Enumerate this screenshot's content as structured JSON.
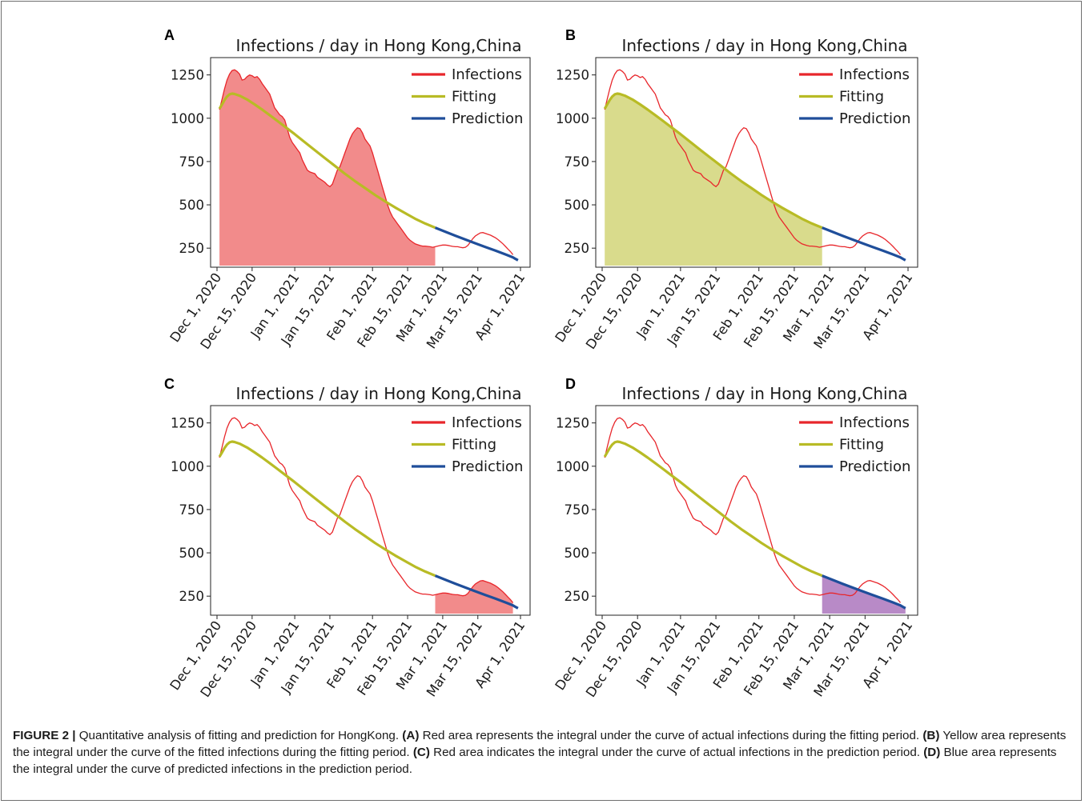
{
  "figure": {
    "caption": {
      "label": "FIGURE 2 |",
      "intro": " Quantitative analysis of fitting and prediction for HongKong. ",
      "parts": [
        {
          "tag": "(A)",
          "text": " Red area represents the integral under the curve of actual infections during the fitting period. "
        },
        {
          "tag": "(B)",
          "text": " Yellow area represents the integral under the curve of the fitted infections during the fitting period. "
        },
        {
          "tag": "(C)",
          "text": " Red area indicates the integral under the curve of actual infections in the prediction period. "
        },
        {
          "tag": "(D)",
          "text": " Blue area represents the integral under the curve of predicted infections in the prediction period."
        }
      ]
    }
  },
  "colors": {
    "infections": "#e8262b",
    "fitting": "#b8bb25",
    "prediction": "#1f4e9a",
    "fill_actual": "#f28b8b",
    "fill_fitted": "#d9db8c",
    "fill_predicted": "#b88ac7"
  },
  "chart_data": [
    {
      "panel": "A",
      "type": "line",
      "title": "Infections / day in Hong Kong,China",
      "xlabel": "",
      "ylabel": "",
      "x_ticks": [
        "Dec 1, 2020",
        "Dec 15, 2020",
        "Jan 1, 2021",
        "Jan 15, 2021",
        "Feb 1, 2021",
        "Feb 15, 2021",
        "Mar 1, 2021",
        "Mar 15, 2021",
        "Apr 1, 2021"
      ],
      "y_ticks": [
        250,
        500,
        750,
        1000,
        1250
      ],
      "legend": [
        "Infections",
        "Fitting",
        "Prediction"
      ],
      "legend_position": "top-right",
      "shaded": "actual-fitting-period"
    },
    {
      "panel": "B",
      "type": "line",
      "title": "Infections / day in Hong Kong,China",
      "xlabel": "",
      "ylabel": "",
      "x_ticks": [
        "Dec 1, 2020",
        "Dec 15, 2020",
        "Jan 1, 2021",
        "Jan 15, 2021",
        "Feb 1, 2021",
        "Feb 15, 2021",
        "Mar 1, 2021",
        "Mar 15, 2021",
        "Apr 1, 2021"
      ],
      "y_ticks": [
        250,
        500,
        750,
        1000,
        1250
      ],
      "legend": [
        "Infections",
        "Fitting",
        "Prediction"
      ],
      "legend_position": "top-right",
      "shaded": "fitted-fitting-period"
    },
    {
      "panel": "C",
      "type": "line",
      "title": "Infections / day in Hong Kong,China",
      "xlabel": "",
      "ylabel": "",
      "x_ticks": [
        "Dec 1, 2020",
        "Dec 15, 2020",
        "Jan 1, 2021",
        "Jan 15, 2021",
        "Feb 1, 2021",
        "Feb 15, 2021",
        "Mar 1, 2021",
        "Mar 15, 2021",
        "Apr 1, 2021"
      ],
      "y_ticks": [
        250,
        500,
        750,
        1000,
        1250
      ],
      "legend": [
        "Infections",
        "Fitting",
        "Prediction"
      ],
      "legend_position": "top-right",
      "shaded": "actual-prediction-period"
    },
    {
      "panel": "D",
      "type": "line",
      "title": "Infections / day in Hong Kong,China",
      "xlabel": "",
      "ylabel": "",
      "x_ticks": [
        "Dec 1, 2020",
        "Dec 15, 2020",
        "Jan 1, 2021",
        "Jan 15, 2021",
        "Feb 1, 2021",
        "Feb 15, 2021",
        "Mar 1, 2021",
        "Mar 15, 2021",
        "Apr 1, 2021"
      ],
      "y_ticks": [
        250,
        500,
        750,
        1000,
        1250
      ],
      "legend": [
        "Infections",
        "Fitting",
        "Prediction"
      ],
      "legend_position": "top-right",
      "shaded": "predicted-prediction-period"
    }
  ],
  "series": {
    "ylim": [
      140,
      1350
    ],
    "prediction_start": "2021-02-26",
    "infections": [
      [
        "2020-12-02",
        1050
      ],
      [
        "2020-12-03",
        1110
      ],
      [
        "2020-12-04",
        1170
      ],
      [
        "2020-12-05",
        1220
      ],
      [
        "2020-12-06",
        1255
      ],
      [
        "2020-12-07",
        1275
      ],
      [
        "2020-12-08",
        1280
      ],
      [
        "2020-12-09",
        1270
      ],
      [
        "2020-12-10",
        1255
      ],
      [
        "2020-12-11",
        1220
      ],
      [
        "2020-12-12",
        1225
      ],
      [
        "2020-12-13",
        1240
      ],
      [
        "2020-12-14",
        1250
      ],
      [
        "2020-12-15",
        1245
      ],
      [
        "2020-12-16",
        1235
      ],
      [
        "2020-12-17",
        1240
      ],
      [
        "2020-12-18",
        1225
      ],
      [
        "2020-12-19",
        1200
      ],
      [
        "2020-12-20",
        1180
      ],
      [
        "2020-12-21",
        1160
      ],
      [
        "2020-12-22",
        1140
      ],
      [
        "2020-12-23",
        1100
      ],
      [
        "2020-12-24",
        1060
      ],
      [
        "2020-12-25",
        1040
      ],
      [
        "2020-12-26",
        1020
      ],
      [
        "2020-12-27",
        1010
      ],
      [
        "2020-12-28",
        990
      ],
      [
        "2020-12-29",
        940
      ],
      [
        "2020-12-30",
        890
      ],
      [
        "2020-12-31",
        860
      ],
      [
        "2021-01-01",
        840
      ],
      [
        "2021-01-02",
        820
      ],
      [
        "2021-01-03",
        800
      ],
      [
        "2021-01-04",
        760
      ],
      [
        "2021-01-05",
        730
      ],
      [
        "2021-01-06",
        700
      ],
      [
        "2021-01-07",
        690
      ],
      [
        "2021-01-08",
        685
      ],
      [
        "2021-01-09",
        680
      ],
      [
        "2021-01-10",
        660
      ],
      [
        "2021-01-11",
        650
      ],
      [
        "2021-01-12",
        640
      ],
      [
        "2021-01-13",
        630
      ],
      [
        "2021-01-14",
        615
      ],
      [
        "2021-01-15",
        605
      ],
      [
        "2021-01-16",
        620
      ],
      [
        "2021-01-17",
        660
      ],
      [
        "2021-01-18",
        700
      ],
      [
        "2021-01-19",
        720
      ],
      [
        "2021-01-20",
        760
      ],
      [
        "2021-01-21",
        800
      ],
      [
        "2021-01-22",
        840
      ],
      [
        "2021-01-23",
        880
      ],
      [
        "2021-01-24",
        910
      ],
      [
        "2021-01-25",
        930
      ],
      [
        "2021-01-26",
        945
      ],
      [
        "2021-01-27",
        940
      ],
      [
        "2021-01-28",
        915
      ],
      [
        "2021-01-29",
        880
      ],
      [
        "2021-01-30",
        860
      ],
      [
        "2021-01-31",
        840
      ],
      [
        "2021-02-01",
        800
      ],
      [
        "2021-02-02",
        750
      ],
      [
        "2021-02-03",
        700
      ],
      [
        "2021-02-04",
        650
      ],
      [
        "2021-02-05",
        600
      ],
      [
        "2021-02-06",
        550
      ],
      [
        "2021-02-07",
        500
      ],
      [
        "2021-02-08",
        460
      ],
      [
        "2021-02-09",
        430
      ],
      [
        "2021-02-10",
        410
      ],
      [
        "2021-02-11",
        390
      ],
      [
        "2021-02-12",
        370
      ],
      [
        "2021-02-13",
        350
      ],
      [
        "2021-02-14",
        330
      ],
      [
        "2021-02-15",
        310
      ],
      [
        "2021-02-16",
        295
      ],
      [
        "2021-02-17",
        285
      ],
      [
        "2021-02-18",
        275
      ],
      [
        "2021-02-19",
        270
      ],
      [
        "2021-02-20",
        265
      ],
      [
        "2021-02-21",
        262
      ],
      [
        "2021-02-22",
        262
      ],
      [
        "2021-02-23",
        260
      ],
      [
        "2021-02-24",
        258
      ],
      [
        "2021-02-25",
        255
      ],
      [
        "2021-02-26",
        258
      ],
      [
        "2021-02-27",
        262
      ],
      [
        "2021-02-28",
        265
      ],
      [
        "2021-03-01",
        268
      ],
      [
        "2021-03-02",
        268
      ],
      [
        "2021-03-03",
        266
      ],
      [
        "2021-03-04",
        263
      ],
      [
        "2021-03-05",
        260
      ],
      [
        "2021-03-06",
        258
      ],
      [
        "2021-03-07",
        258
      ],
      [
        "2021-03-08",
        255
      ],
      [
        "2021-03-09",
        252
      ],
      [
        "2021-03-10",
        255
      ],
      [
        "2021-03-11",
        265
      ],
      [
        "2021-03-12",
        285
      ],
      [
        "2021-03-13",
        305
      ],
      [
        "2021-03-14",
        320
      ],
      [
        "2021-03-15",
        330
      ],
      [
        "2021-03-16",
        338
      ],
      [
        "2021-03-17",
        340
      ],
      [
        "2021-03-18",
        335
      ],
      [
        "2021-03-19",
        330
      ],
      [
        "2021-03-20",
        325
      ],
      [
        "2021-03-21",
        318
      ],
      [
        "2021-03-22",
        310
      ],
      [
        "2021-03-23",
        300
      ],
      [
        "2021-03-24",
        288
      ],
      [
        "2021-03-25",
        275
      ],
      [
        "2021-03-26",
        260
      ],
      [
        "2021-03-27",
        245
      ],
      [
        "2021-03-28",
        230
      ],
      [
        "2021-03-29",
        212
      ]
    ],
    "fitting": [
      [
        "2020-12-02",
        1055
      ],
      [
        "2020-12-03",
        1080
      ],
      [
        "2020-12-04",
        1105
      ],
      [
        "2020-12-05",
        1125
      ],
      [
        "2020-12-06",
        1138
      ],
      [
        "2020-12-07",
        1142
      ],
      [
        "2020-12-08",
        1140
      ],
      [
        "2020-12-10",
        1130
      ],
      [
        "2020-12-13",
        1108
      ],
      [
        "2020-12-16",
        1080
      ],
      [
        "2020-12-19",
        1050
      ],
      [
        "2020-12-22",
        1018
      ],
      [
        "2020-12-25",
        985
      ],
      [
        "2020-12-28",
        952
      ],
      [
        "2021-01-01",
        908
      ],
      [
        "2021-01-05",
        862
      ],
      [
        "2021-01-09",
        815
      ],
      [
        "2021-01-13",
        770
      ],
      [
        "2021-01-17",
        725
      ],
      [
        "2021-01-21",
        680
      ],
      [
        "2021-01-25",
        637
      ],
      [
        "2021-01-29",
        597
      ],
      [
        "2021-02-02",
        557
      ],
      [
        "2021-02-06",
        520
      ],
      [
        "2021-02-10",
        485
      ],
      [
        "2021-02-14",
        452
      ],
      [
        "2021-02-18",
        420
      ],
      [
        "2021-02-22",
        392
      ],
      [
        "2021-02-26",
        368
      ]
    ],
    "prediction": [
      [
        "2021-02-26",
        368
      ],
      [
        "2021-03-02",
        345
      ],
      [
        "2021-03-06",
        322
      ],
      [
        "2021-03-10",
        300
      ],
      [
        "2021-03-14",
        278
      ],
      [
        "2021-03-18",
        257
      ],
      [
        "2021-03-22",
        236
      ],
      [
        "2021-03-26",
        214
      ],
      [
        "2021-03-29",
        197
      ],
      [
        "2021-03-30",
        188
      ],
      [
        "2021-03-31",
        180
      ]
    ]
  }
}
